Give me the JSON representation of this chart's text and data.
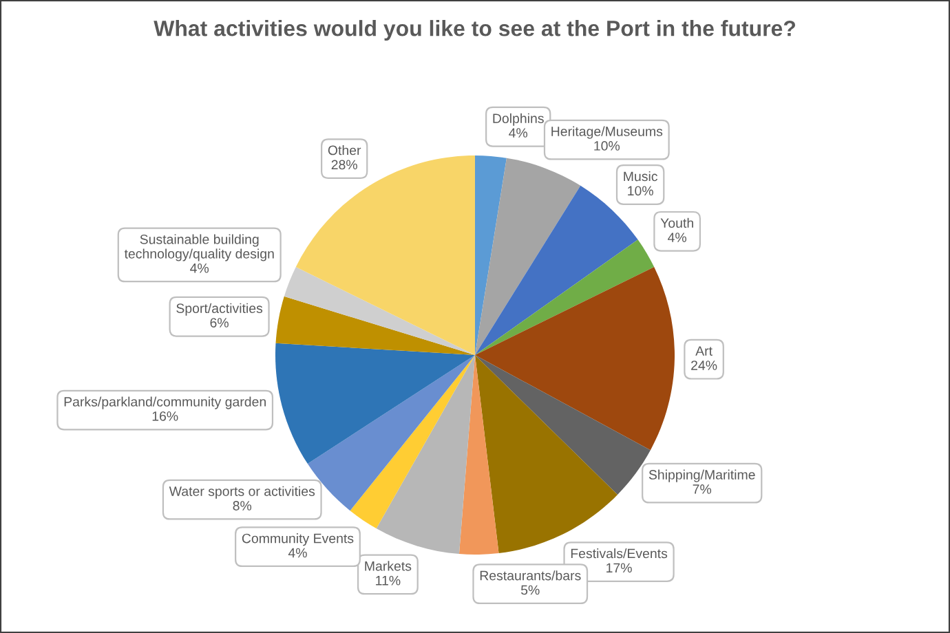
{
  "chart_data": {
    "type": "pie",
    "title": "What activities would you like to see at the Port in the future?",
    "categories": [
      "Dolphins",
      "Heritage/Museums",
      "Music",
      "Youth",
      "Art",
      "Shipping/Maritime",
      "Festivals/Events",
      "Restaurants/bars",
      "Markets",
      "Community Events",
      "Water sports or activities",
      "Parks/parkland/community garden",
      "Sport/activities",
      "Sustainable building\ntechnology/quality design",
      "Other"
    ],
    "values": [
      4,
      10,
      10,
      4,
      24,
      7,
      17,
      5,
      11,
      4,
      8,
      16,
      6,
      4,
      28
    ],
    "value_labels": [
      "4%",
      "10%",
      "10%",
      "4%",
      "24%",
      "7%",
      "17%",
      "5%",
      "11%",
      "4%",
      "8%",
      "16%",
      "6%",
      "4%",
      "28%"
    ],
    "colors": [
      "#5b9bd5",
      "#a5a5a5",
      "#4472c4",
      "#70ad47",
      "#9e480e",
      "#636363",
      "#997300",
      "#f1975a",
      "#b7b7b7",
      "#ffcd33",
      "#698ed0",
      "#2e75b6",
      "#bf9000",
      "#cfcfcf",
      "#f8d568"
    ]
  }
}
